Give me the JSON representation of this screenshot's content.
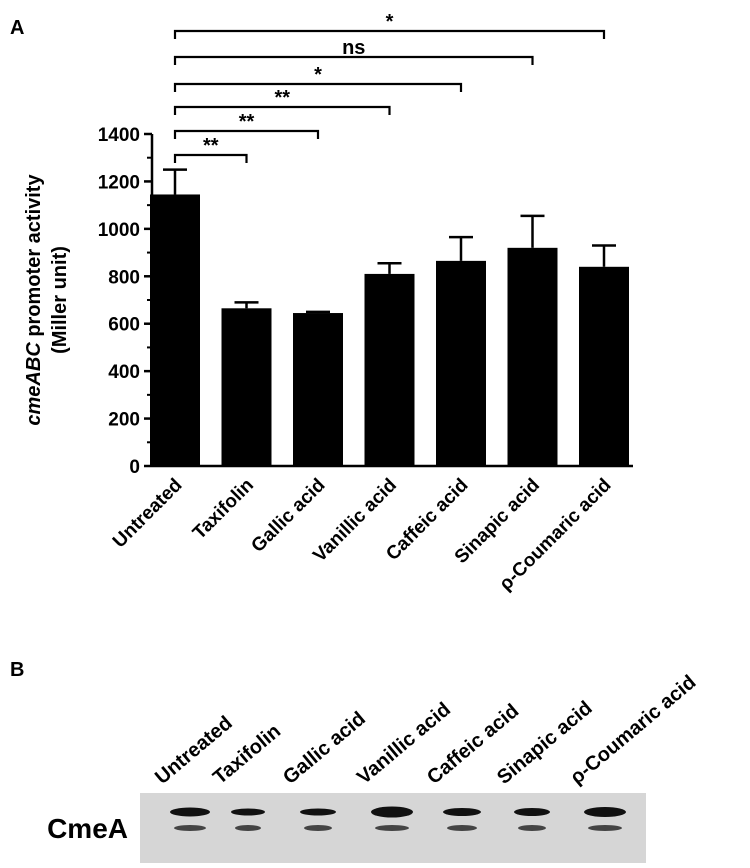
{
  "chart_data": {
    "type": "bar",
    "panel_label": "A",
    "y_label": {
      "gene": "cmeABC",
      "text": "promoter activity",
      "unit": "(Miller unit)"
    },
    "categories": [
      "Untreated",
      "Taxifolin",
      "Gallic acid",
      "Vanillic acid",
      "Caffeic acid",
      "Sinapic acid",
      "ρ-Coumaric acid"
    ],
    "values": [
      1145,
      665,
      645,
      810,
      865,
      920,
      840
    ],
    "errors": [
      105,
      25,
      5,
      45,
      100,
      135,
      90
    ],
    "color": "#000000",
    "ylim": [
      0,
      1400
    ],
    "yticks": [
      0,
      200,
      400,
      600,
      800,
      1000,
      1200,
      1400
    ],
    "comparisons": [
      {
        "groups": [
          "Untreated",
          "Taxifolin"
        ],
        "label": "**"
      },
      {
        "groups": [
          "Untreated",
          "Gallic acid"
        ],
        "label": "**"
      },
      {
        "groups": [
          "Untreated",
          "Vanillic acid"
        ],
        "label": "**"
      },
      {
        "groups": [
          "Untreated",
          "Caffeic acid"
        ],
        "label": "*"
      },
      {
        "groups": [
          "Untreated",
          "Sinapic acid"
        ],
        "label": "ns"
      },
      {
        "groups": [
          "Untreated",
          "ρ-Coumaric acid"
        ],
        "label": "*"
      }
    ]
  },
  "blot": {
    "panel_label": "B",
    "protein": "CmeA",
    "lanes": [
      "Untreated",
      "Taxifolin",
      "Gallic acid",
      "Vanillic acid",
      "Caffeic acid",
      "Sinapic acid",
      "ρ-Coumaric acid"
    ]
  }
}
